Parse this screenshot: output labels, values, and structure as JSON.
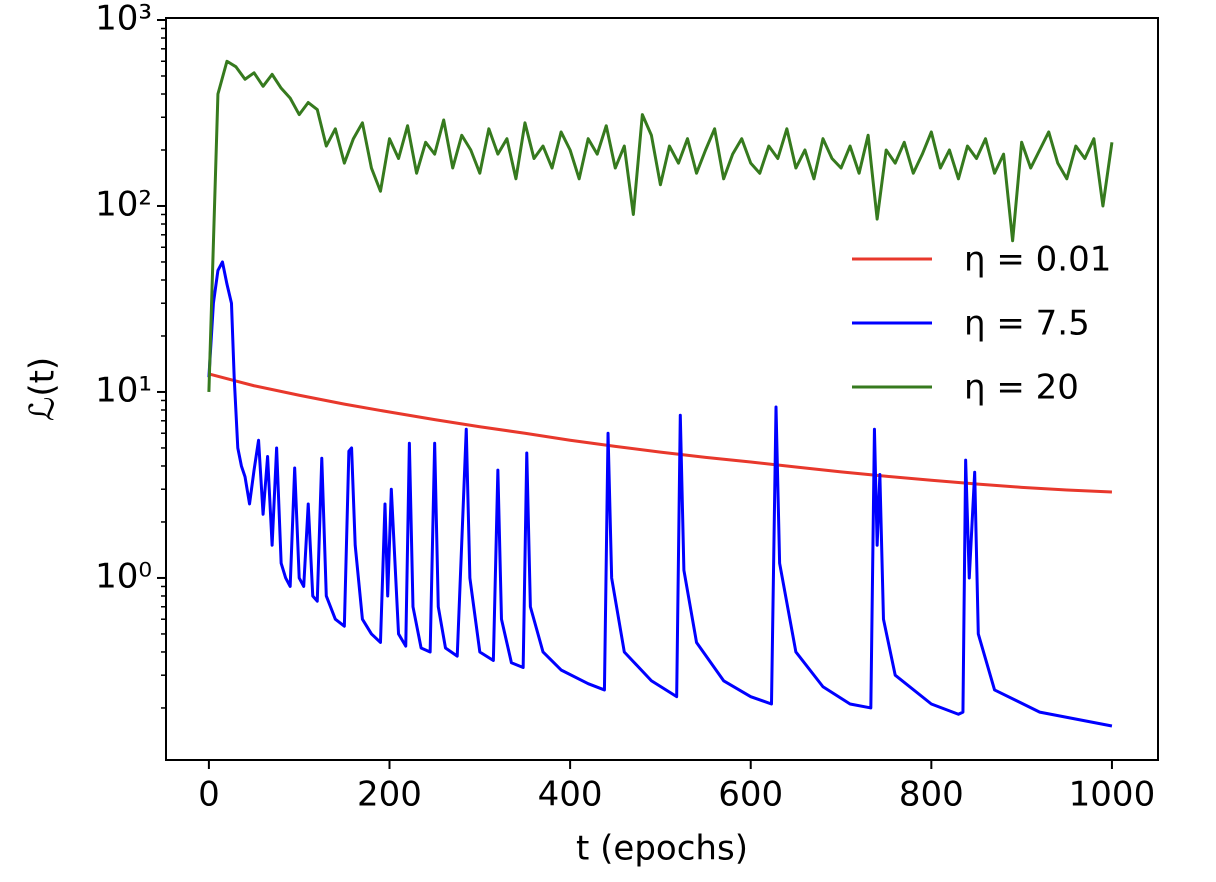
{
  "chart_data": {
    "type": "line",
    "xlabel": "t (epochs)",
    "ylabel": "ℒ(t)",
    "xlim": [
      -47.5,
      1051
    ],
    "xticks": [
      0,
      200,
      400,
      600,
      800,
      1000
    ],
    "ylim": [
      0.105,
      1025
    ],
    "yscale": "log",
    "yticks": [
      {
        "value": 1,
        "label": "10⁰"
      },
      {
        "value": 10,
        "label": "10¹"
      },
      {
        "value": 100,
        "label": "10²"
      },
      {
        "value": 1000,
        "label": "10³"
      }
    ],
    "grid": false,
    "legend": "center right",
    "series": [
      {
        "name": "η = 0.01",
        "color": "#e8382c",
        "x": [
          0,
          50,
          100,
          150,
          200,
          250,
          300,
          350,
          400,
          450,
          500,
          550,
          600,
          650,
          700,
          750,
          800,
          850,
          900,
          950,
          1000
        ],
        "values": [
          12.5,
          10.8,
          9.6,
          8.6,
          7.8,
          7.1,
          6.5,
          6.0,
          5.5,
          5.1,
          4.75,
          4.45,
          4.2,
          3.95,
          3.72,
          3.52,
          3.35,
          3.2,
          3.07,
          2.97,
          2.9
        ]
      },
      {
        "name": "η = 7.5",
        "color": "#0000ff",
        "x": [
          0,
          5,
          10,
          15,
          20,
          25,
          28,
          32,
          36,
          40,
          45,
          50,
          55,
          60,
          65,
          70,
          75,
          80,
          85,
          90,
          95,
          100,
          105,
          110,
          115,
          120,
          125,
          130,
          140,
          150,
          155,
          158,
          162,
          170,
          180,
          190,
          195,
          198,
          202,
          210,
          218,
          222,
          226,
          235,
          245,
          250,
          254,
          262,
          275,
          285,
          289,
          300,
          315,
          320,
          324,
          335,
          348,
          352,
          356,
          370,
          390,
          420,
          438,
          442,
          446,
          460,
          490,
          518,
          522,
          526,
          540,
          570,
          600,
          623,
          628,
          632,
          650,
          680,
          710,
          733,
          737,
          740,
          743,
          747,
          760,
          800,
          830,
          835,
          838,
          842,
          848,
          852,
          870,
          920,
          1000
        ],
        "values": [
          12,
          30,
          45,
          50,
          38,
          30,
          12,
          5,
          4,
          3.5,
          2.5,
          3.8,
          5.5,
          2.2,
          4.5,
          1.5,
          5,
          1.2,
          1,
          0.9,
          3.9,
          1,
          0.9,
          2.5,
          0.8,
          0.75,
          4.4,
          0.8,
          0.6,
          0.55,
          4.8,
          5,
          1.5,
          0.6,
          0.5,
          0.45,
          2.5,
          0.8,
          3,
          0.5,
          0.43,
          5.3,
          0.7,
          0.42,
          0.4,
          5.3,
          0.7,
          0.42,
          0.38,
          6.3,
          1,
          0.4,
          0.36,
          3.8,
          0.6,
          0.35,
          0.33,
          4.7,
          0.7,
          0.4,
          0.32,
          0.27,
          0.25,
          6,
          1,
          0.4,
          0.28,
          0.23,
          7.5,
          1.1,
          0.45,
          0.28,
          0.23,
          0.21,
          8.3,
          1.2,
          0.4,
          0.26,
          0.21,
          0.2,
          6.3,
          1.5,
          3.6,
          0.6,
          0.3,
          0.21,
          0.185,
          0.19,
          4.3,
          1,
          3.7,
          0.5,
          0.25,
          0.19,
          0.16
        ]
      },
      {
        "name": "η = 20",
        "color": "#367a1e",
        "x": [
          0,
          10,
          20,
          30,
          40,
          50,
          60,
          70,
          80,
          90,
          100,
          110,
          120,
          130,
          140,
          150,
          160,
          170,
          180,
          190,
          200,
          210,
          220,
          230,
          240,
          250,
          260,
          270,
          280,
          290,
          300,
          310,
          320,
          330,
          340,
          350,
          360,
          370,
          380,
          390,
          400,
          410,
          420,
          430,
          440,
          450,
          460,
          470,
          480,
          490,
          500,
          510,
          520,
          530,
          540,
          550,
          560,
          570,
          580,
          590,
          600,
          610,
          620,
          630,
          640,
          650,
          660,
          670,
          680,
          690,
          700,
          710,
          720,
          730,
          740,
          750,
          760,
          770,
          780,
          790,
          800,
          810,
          820,
          830,
          840,
          850,
          860,
          870,
          880,
          890,
          900,
          910,
          920,
          930,
          940,
          950,
          960,
          970,
          980,
          990,
          1000
        ],
        "values": [
          10,
          400,
          600,
          560,
          480,
          520,
          440,
          510,
          430,
          380,
          310,
          360,
          330,
          210,
          260,
          170,
          230,
          280,
          160,
          120,
          230,
          180,
          270,
          150,
          220,
          190,
          290,
          160,
          240,
          200,
          150,
          260,
          190,
          230,
          140,
          280,
          180,
          210,
          160,
          250,
          200,
          140,
          230,
          190,
          270,
          160,
          210,
          90,
          310,
          240,
          130,
          210,
          170,
          230,
          150,
          200,
          260,
          140,
          190,
          230,
          170,
          150,
          210,
          180,
          260,
          160,
          200,
          140,
          230,
          180,
          160,
          210,
          150,
          240,
          85,
          200,
          170,
          220,
          150,
          190,
          250,
          160,
          200,
          140,
          210,
          180,
          230,
          150,
          190,
          65,
          220,
          160,
          200,
          250,
          170,
          140,
          210,
          180,
          230,
          100,
          220
        ]
      }
    ]
  }
}
